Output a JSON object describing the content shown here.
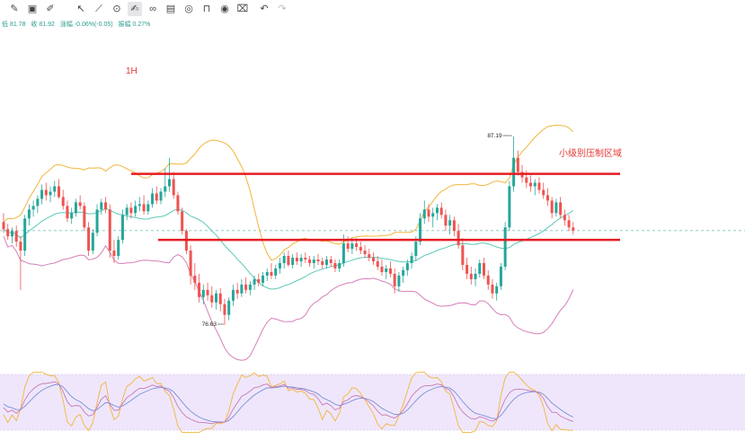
{
  "toolbar": {
    "tools": [
      {
        "icon": "brush-icon",
        "glyph": "✎",
        "active": false,
        "enabled": true
      },
      {
        "icon": "add-chart-icon",
        "glyph": "▣",
        "active": false,
        "enabled": true
      },
      {
        "icon": "pencil-line-icon",
        "glyph": "✐",
        "active": false,
        "enabled": true
      },
      {
        "icon": "cursor-icon",
        "glyph": "↖",
        "active": false,
        "enabled": true
      },
      {
        "icon": "ruler-icon",
        "glyph": "⟋",
        "active": false,
        "enabled": true
      },
      {
        "icon": "magnet-icon",
        "glyph": "⊙",
        "active": false,
        "enabled": true
      },
      {
        "icon": "draw-active-icon",
        "glyph": "✍",
        "active": true,
        "enabled": true
      },
      {
        "icon": "link-icon",
        "glyph": "∞",
        "active": false,
        "enabled": true
      },
      {
        "icon": "image-icon",
        "glyph": "▤",
        "active": false,
        "enabled": true
      },
      {
        "icon": "target-icon",
        "glyph": "◎",
        "active": false,
        "enabled": true
      },
      {
        "icon": "lock-icon",
        "glyph": "⊓",
        "active": false,
        "enabled": true
      },
      {
        "icon": "eye-icon",
        "glyph": "◉",
        "active": false,
        "enabled": true
      },
      {
        "icon": "trash-icon",
        "glyph": "⌧",
        "active": false,
        "enabled": true
      },
      {
        "icon": "undo-icon",
        "glyph": "↶",
        "active": false,
        "enabled": true
      },
      {
        "icon": "redo-icon",
        "glyph": "↷",
        "active": false,
        "enabled": false
      }
    ]
  },
  "info": {
    "low": "低 81.78",
    "close": "收 81.92",
    "change": "涨幅 -0.06%(-0.05)",
    "amplitude": "振幅 0.27%"
  },
  "chart_data": {
    "type": "candlestick",
    "timeframe": "1H",
    "annotation": "小级别压制区域",
    "high_label": "87.19",
    "low_label": "76.63",
    "resistance_level": 85.1,
    "support_level": 81.4,
    "last_price": 81.92,
    "ohlc": [
      [
        82.4,
        82.9,
        81.8,
        82.0
      ],
      [
        82.0,
        82.3,
        81.4,
        81.6
      ],
      [
        81.6,
        82.1,
        81.2,
        81.9
      ],
      [
        81.9,
        82.2,
        81.0,
        81.3
      ],
      [
        81.3,
        81.6,
        78.6,
        80.8
      ],
      [
        80.8,
        82.8,
        80.5,
        82.6
      ],
      [
        82.6,
        83.4,
        82.2,
        83.1
      ],
      [
        83.1,
        83.6,
        82.7,
        83.3
      ],
      [
        83.3,
        83.9,
        82.9,
        83.7
      ],
      [
        83.7,
        84.5,
        83.4,
        84.2
      ],
      [
        84.2,
        84.6,
        83.6,
        83.9
      ],
      [
        83.9,
        84.4,
        83.5,
        84.1
      ],
      [
        84.1,
        84.7,
        83.8,
        84.4
      ],
      [
        84.4,
        84.8,
        83.7,
        83.8
      ],
      [
        83.8,
        84.2,
        83.1,
        83.3
      ],
      [
        83.3,
        83.6,
        82.4,
        82.6
      ],
      [
        82.6,
        83.2,
        82.3,
        82.9
      ],
      [
        82.9,
        83.7,
        82.7,
        83.5
      ],
      [
        83.5,
        83.9,
        83.1,
        83.3
      ],
      [
        83.3,
        83.5,
        81.9,
        82.1
      ],
      [
        82.1,
        82.4,
        80.5,
        80.8
      ],
      [
        80.8,
        82.0,
        80.6,
        81.8
      ],
      [
        81.8,
        83.4,
        81.6,
        83.1
      ],
      [
        83.1,
        83.7,
        82.8,
        83.5
      ],
      [
        83.5,
        83.8,
        82.9,
        83.1
      ],
      [
        83.1,
        83.4,
        80.4,
        80.8
      ],
      [
        80.8,
        81.4,
        80.1,
        80.5
      ],
      [
        80.5,
        81.6,
        80.3,
        81.4
      ],
      [
        81.4,
        83.1,
        81.2,
        82.8
      ],
      [
        82.8,
        83.4,
        82.5,
        83.2
      ],
      [
        83.2,
        83.5,
        82.6,
        82.9
      ],
      [
        82.9,
        83.6,
        82.7,
        83.3
      ],
      [
        83.3,
        83.8,
        83.0,
        83.4
      ],
      [
        83.4,
        83.9,
        82.8,
        83.0
      ],
      [
        83.0,
        83.6,
        82.8,
        83.4
      ],
      [
        83.4,
        84.3,
        83.2,
        84.0
      ],
      [
        84.0,
        84.4,
        83.4,
        83.6
      ],
      [
        83.6,
        84.3,
        83.4,
        84.1
      ],
      [
        84.1,
        85.4,
        83.8,
        84.4
      ],
      [
        84.4,
        86.0,
        84.1,
        84.8
      ],
      [
        84.8,
        85.2,
        83.7,
        83.9
      ],
      [
        83.9,
        84.1,
        82.8,
        83.0
      ],
      [
        83.0,
        83.2,
        81.7,
        81.9
      ],
      [
        81.9,
        82.0,
        80.6,
        80.8
      ],
      [
        80.8,
        81.1,
        78.9,
        79.4
      ],
      [
        79.4,
        80.1,
        78.6,
        79.0
      ],
      [
        79.0,
        79.5,
        77.9,
        78.2
      ],
      [
        78.2,
        78.9,
        77.8,
        78.6
      ],
      [
        78.6,
        79.0,
        78.0,
        78.3
      ],
      [
        78.3,
        78.8,
        77.6,
        77.9
      ],
      [
        77.9,
        78.6,
        77.5,
        78.4
      ],
      [
        78.4,
        78.7,
        77.4,
        77.8
      ],
      [
        77.8,
        78.1,
        76.63,
        77.2
      ],
      [
        77.2,
        78.2,
        76.9,
        78.0
      ],
      [
        78.0,
        78.9,
        77.7,
        78.6
      ],
      [
        78.6,
        79.0,
        78.1,
        78.4
      ],
      [
        78.4,
        79.2,
        78.2,
        78.9
      ],
      [
        78.9,
        79.3,
        78.4,
        78.6
      ],
      [
        78.6,
        79.1,
        78.3,
        78.9
      ],
      [
        78.9,
        79.4,
        78.6,
        79.2
      ],
      [
        79.2,
        79.5,
        78.8,
        79.0
      ],
      [
        79.0,
        79.6,
        78.8,
        79.4
      ],
      [
        79.4,
        79.8,
        79.1,
        79.6
      ],
      [
        79.6,
        80.1,
        79.2,
        79.4
      ],
      [
        79.4,
        80.0,
        79.2,
        79.8
      ],
      [
        79.8,
        80.4,
        79.5,
        80.1
      ],
      [
        80.1,
        80.7,
        79.8,
        80.5
      ],
      [
        80.5,
        80.8,
        79.9,
        80.0
      ],
      [
        80.0,
        80.6,
        79.8,
        80.4
      ],
      [
        80.4,
        80.7,
        80.0,
        80.2
      ],
      [
        80.2,
        80.6,
        79.9,
        80.4
      ],
      [
        80.4,
        80.7,
        80.1,
        80.3
      ],
      [
        80.3,
        80.5,
        79.9,
        80.1
      ],
      [
        80.1,
        80.5,
        79.8,
        80.3
      ],
      [
        80.3,
        80.6,
        80.0,
        80.2
      ],
      [
        80.2,
        80.4,
        79.8,
        80.0
      ],
      [
        80.0,
        80.5,
        79.8,
        80.3
      ],
      [
        80.3,
        80.5,
        79.9,
        80.1
      ],
      [
        80.1,
        80.3,
        79.6,
        79.8
      ],
      [
        79.8,
        80.3,
        79.6,
        80.1
      ],
      [
        80.1,
        81.7,
        79.9,
        81.2
      ],
      [
        81.2,
        81.6,
        80.7,
        80.9
      ],
      [
        80.9,
        81.5,
        80.6,
        81.2
      ],
      [
        81.2,
        81.5,
        80.8,
        81.0
      ],
      [
        81.0,
        81.3,
        80.6,
        80.8
      ],
      [
        80.8,
        81.1,
        80.4,
        80.6
      ],
      [
        80.6,
        80.9,
        80.2,
        80.4
      ],
      [
        80.4,
        80.7,
        80.0,
        80.2
      ],
      [
        80.2,
        80.5,
        79.7,
        79.9
      ],
      [
        79.9,
        80.3,
        79.4,
        79.6
      ],
      [
        79.6,
        80.0,
        79.2,
        79.8
      ],
      [
        79.8,
        80.2,
        79.3,
        79.5
      ],
      [
        79.5,
        79.8,
        78.4,
        78.8
      ],
      [
        78.8,
        79.6,
        78.5,
        79.4
      ],
      [
        79.4,
        79.9,
        79.0,
        79.7
      ],
      [
        79.7,
        80.3,
        79.4,
        80.1
      ],
      [
        80.1,
        80.7,
        79.8,
        80.5
      ],
      [
        80.5,
        81.6,
        80.2,
        81.3
      ],
      [
        81.3,
        82.9,
        81.1,
        82.6
      ],
      [
        82.6,
        83.6,
        82.3,
        83.1
      ],
      [
        83.1,
        83.4,
        82.4,
        82.7
      ],
      [
        82.7,
        83.2,
        82.1,
        82.9
      ],
      [
        82.9,
        83.4,
        82.5,
        83.2
      ],
      [
        83.2,
        83.5,
        82.6,
        82.8
      ],
      [
        82.8,
        83.1,
        81.9,
        82.2
      ],
      [
        82.2,
        82.8,
        81.7,
        82.5
      ],
      [
        82.5,
        82.7,
        81.6,
        81.9
      ],
      [
        81.9,
        82.3,
        80.9,
        81.1
      ],
      [
        81.1,
        81.5,
        79.7,
        80.0
      ],
      [
        80.0,
        80.4,
        79.2,
        79.5
      ],
      [
        79.5,
        79.9,
        78.9,
        79.2
      ],
      [
        79.2,
        79.8,
        78.8,
        79.5
      ],
      [
        79.5,
        80.3,
        79.3,
        80.1
      ],
      [
        80.1,
        80.4,
        79.2,
        79.4
      ],
      [
        79.4,
        79.7,
        78.6,
        78.9
      ],
      [
        78.9,
        79.2,
        78.1,
        78.4
      ],
      [
        78.4,
        79.0,
        78.0,
        78.8
      ],
      [
        78.8,
        80.1,
        78.6,
        79.9
      ],
      [
        79.9,
        82.4,
        79.7,
        82.1
      ],
      [
        82.1,
        84.7,
        81.9,
        84.4
      ],
      [
        84.4,
        87.19,
        84.1,
        86.0
      ],
      [
        86.0,
        86.4,
        85.0,
        85.2
      ],
      [
        85.2,
        85.6,
        84.6,
        84.9
      ],
      [
        84.9,
        85.3,
        84.3,
        84.6
      ],
      [
        84.6,
        85.0,
        84.1,
        84.4
      ],
      [
        84.4,
        84.8,
        83.9,
        84.6
      ],
      [
        84.6,
        84.9,
        84.0,
        84.2
      ],
      [
        84.2,
        84.6,
        83.7,
        83.9
      ],
      [
        83.9,
        84.3,
        83.3,
        83.6
      ],
      [
        83.6,
        83.8,
        82.6,
        82.9
      ],
      [
        82.9,
        83.7,
        82.7,
        83.5
      ],
      [
        83.5,
        83.8,
        82.6,
        82.8
      ],
      [
        82.8,
        83.1,
        82.2,
        82.5
      ],
      [
        82.5,
        82.8,
        81.9,
        82.1
      ],
      [
        82.1,
        82.4,
        81.7,
        81.92
      ]
    ]
  }
}
